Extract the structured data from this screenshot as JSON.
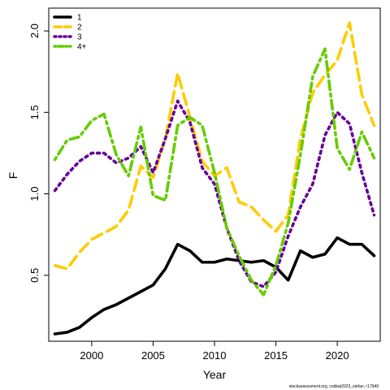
{
  "chart_data": {
    "type": "line",
    "title": "",
    "xlabel": "Year",
    "ylabel": "F",
    "xlim": [
      1996.5,
      2023.5
    ],
    "ylim": [
      0.095,
      2.14
    ],
    "x_ticks": [
      2000,
      2005,
      2010,
      2015,
      2020
    ],
    "y_ticks": [
      0.5,
      1.0,
      1.5,
      2.0
    ],
    "y_tick_labels": [
      "0.5",
      "1.0",
      "1.5",
      "2.0"
    ],
    "grid": false,
    "legend_position": "top-left",
    "x": [
      1997,
      1998,
      1999,
      2000,
      2001,
      2002,
      2003,
      2004,
      2005,
      2006,
      2007,
      2008,
      2009,
      2010,
      2011,
      2012,
      2013,
      2014,
      2015,
      2016,
      2017,
      2018,
      2019,
      2020,
      2021,
      2022,
      2023
    ],
    "series": [
      {
        "name": "1",
        "color": "#000000",
        "dash": "solid",
        "values": [
          0.14,
          0.15,
          0.18,
          0.24,
          0.29,
          0.32,
          0.36,
          0.4,
          0.44,
          0.54,
          0.69,
          0.65,
          0.58,
          0.58,
          0.6,
          0.59,
          0.58,
          0.59,
          0.55,
          0.47,
          0.65,
          0.61,
          0.63,
          0.73,
          0.69,
          0.69,
          0.62
        ]
      },
      {
        "name": "2",
        "color": "#ffcc00",
        "dash": "long",
        "values": [
          0.56,
          0.54,
          0.64,
          0.72,
          0.76,
          0.8,
          0.9,
          1.17,
          1.1,
          1.34,
          1.74,
          1.47,
          1.2,
          1.11,
          1.16,
          0.95,
          0.92,
          0.84,
          0.77,
          0.87,
          1.34,
          1.62,
          1.73,
          1.82,
          2.05,
          1.61,
          1.42
        ]
      },
      {
        "name": "3",
        "color": "#660099",
        "dash": "dotted",
        "values": [
          1.02,
          1.12,
          1.2,
          1.25,
          1.25,
          1.19,
          1.22,
          1.29,
          1.13,
          1.34,
          1.57,
          1.44,
          1.16,
          1.06,
          0.79,
          0.59,
          0.46,
          0.43,
          0.52,
          0.74,
          0.92,
          1.06,
          1.36,
          1.5,
          1.43,
          1.13,
          0.87
        ]
      },
      {
        "name": "4+",
        "color": "#66cc00",
        "dash": "dashdot",
        "values": [
          1.21,
          1.33,
          1.35,
          1.45,
          1.49,
          1.24,
          1.11,
          1.41,
          0.99,
          0.96,
          1.42,
          1.47,
          1.42,
          1.13,
          0.79,
          0.62,
          0.47,
          0.38,
          0.56,
          0.82,
          1.24,
          1.72,
          1.89,
          1.28,
          1.15,
          1.38,
          1.22
        ]
      }
    ],
    "credit": "stockassessment.org, codkat2023_stefan, r17949"
  }
}
